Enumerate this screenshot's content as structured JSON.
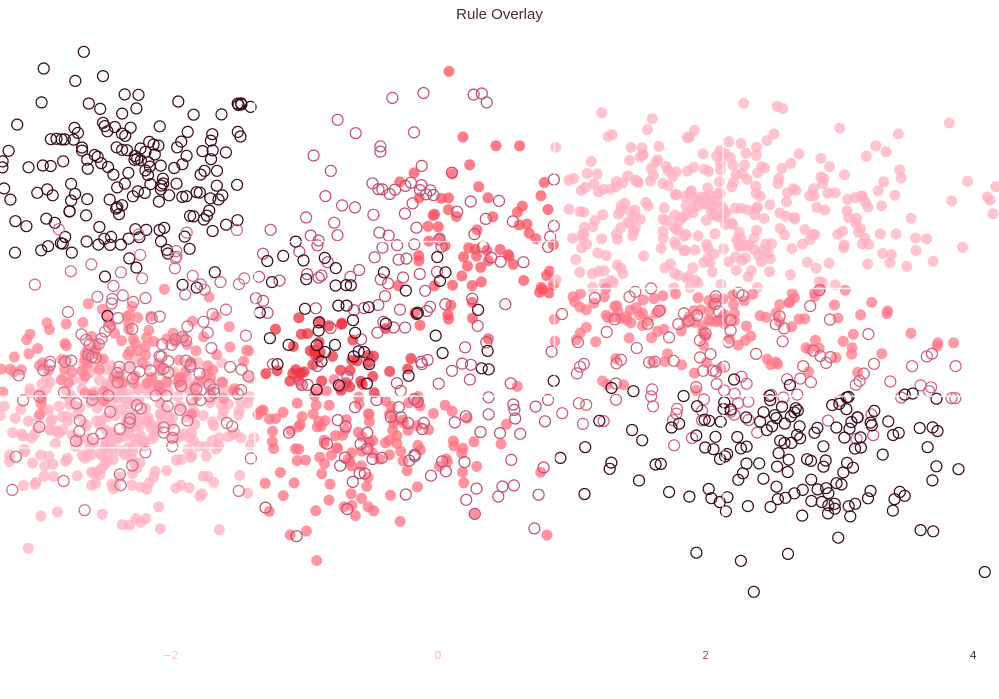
{
  "chart_data": {
    "type": "scatter",
    "title": "Rule Overlay",
    "xlabel": "",
    "ylabel": "",
    "x_ticks": [
      -2,
      0,
      2,
      4
    ],
    "x_tick_colors": [
      "#ffc0d0",
      "#ffb0c0",
      "#a05060",
      "#333333"
    ],
    "xlim": [
      -3.28,
      4.2
    ],
    "ylim": [
      -3.2,
      3.2
    ],
    "grid": false,
    "legend": null,
    "rules": {
      "vertical_x": [
        -1.37,
        0.87,
        2.13
      ],
      "horizontal_y": [
        {
          "y": 0.55,
          "x_from": 0.87,
          "x_to": 4.2
        },
        {
          "y": 1.05,
          "x_from": -1.37,
          "x_to": 0.87
        },
        {
          "y": -0.6,
          "x_from": -3.28,
          "x_to": 0.87
        },
        {
          "y": -1.15,
          "x_from": -3.28,
          "x_to": -1.37
        },
        {
          "y": -0.6,
          "x_from": 2.13,
          "x_to": 4.2
        }
      ]
    },
    "series": [
      {
        "name": "dark-hollow-topleft",
        "style": "hollow",
        "color": "#3a0a18",
        "center": [
          -2.3,
          1.7
        ],
        "spread": [
          0.55,
          0.55
        ],
        "count": 170,
        "xrange": [
          -3.28,
          -1.37
        ],
        "yrange": [
          0.2,
          3.2
        ]
      },
      {
        "name": "pink-hollow-topmid",
        "style": "hollow",
        "color": "#c05070",
        "center": [
          -0.3,
          1.0
        ],
        "spread": [
          0.7,
          0.7
        ],
        "count": 110,
        "xrange": [
          -1.37,
          0.87
        ],
        "yrange": [
          -0.6,
          3.2
        ]
      },
      {
        "name": "red-filled-topmid",
        "style": "filled",
        "color": "#ff5060",
        "center": [
          0.3,
          0.9
        ],
        "spread": [
          0.5,
          0.6
        ],
        "count": 70,
        "xrange": [
          -0.3,
          0.87
        ],
        "yrange": [
          0.0,
          3.2
        ]
      },
      {
        "name": "lightpink-filled-topright",
        "style": "filled",
        "color": "#ffb0c0",
        "center": [
          2.0,
          1.3
        ],
        "spread": [
          0.9,
          0.5
        ],
        "count": 330,
        "xrange": [
          0.87,
          4.2
        ],
        "yrange": [
          0.55,
          3.2
        ]
      },
      {
        "name": "pink-filled-midright",
        "style": "filled",
        "color": "#ff7a8a",
        "center": [
          1.8,
          0.3
        ],
        "spread": [
          0.9,
          0.35
        ],
        "count": 130,
        "xrange": [
          0.87,
          4.2
        ],
        "yrange": [
          -0.6,
          0.55
        ]
      },
      {
        "name": "red-filled-center",
        "style": "filled",
        "color": "#ee3040",
        "center": [
          -0.8,
          -0.3
        ],
        "spread": [
          0.35,
          0.3
        ],
        "count": 45,
        "xrange": [
          -1.37,
          0.0
        ],
        "yrange": [
          -0.6,
          0.3
        ]
      },
      {
        "name": "dark-hollow-mid",
        "style": "hollow",
        "color": "#3a0a18",
        "center": [
          -0.7,
          0.1
        ],
        "spread": [
          0.6,
          0.5
        ],
        "count": 50,
        "xrange": [
          -1.37,
          0.87
        ],
        "yrange": [
          -0.6,
          1.05
        ]
      },
      {
        "name": "lightpink-filled-bottomleft",
        "style": "filled",
        "color": "#ffb0c0",
        "center": [
          -2.3,
          -0.9
        ],
        "spread": [
          0.6,
          0.45
        ],
        "count": 300,
        "xrange": [
          -3.28,
          -1.37
        ],
        "yrange": [
          -3.2,
          -0.2
        ]
      },
      {
        "name": "pink-hollow-left",
        "style": "hollow",
        "color": "#d06a85",
        "center": [
          -2.3,
          -0.3
        ],
        "spread": [
          0.6,
          0.7
        ],
        "count": 130,
        "xrange": [
          -3.28,
          -1.37
        ],
        "yrange": [
          -2.0,
          1.2
        ]
      },
      {
        "name": "pink-filled-left",
        "style": "filled",
        "color": "#ff8090",
        "center": [
          -2.3,
          -0.2
        ],
        "spread": [
          0.6,
          0.35
        ],
        "count": 120,
        "xrange": [
          -3.28,
          -1.37
        ],
        "yrange": [
          -0.8,
          0.6
        ]
      },
      {
        "name": "pink-filled-bottommid",
        "style": "filled",
        "color": "#ff7080",
        "center": [
          -0.6,
          -1.0
        ],
        "spread": [
          0.5,
          0.5
        ],
        "count": 130,
        "xrange": [
          -1.37,
          0.87
        ],
        "yrange": [
          -3.2,
          -0.4
        ]
      },
      {
        "name": "pink-hollow-bottommid",
        "style": "hollow",
        "color": "#c05070",
        "center": [
          0.0,
          -0.9
        ],
        "spread": [
          0.7,
          0.5
        ],
        "count": 70,
        "xrange": [
          -1.37,
          0.87
        ],
        "yrange": [
          -2.4,
          -0.2
        ]
      },
      {
        "name": "pink-hollow-right",
        "style": "hollow",
        "color": "#d0607a",
        "center": [
          2.0,
          -0.3
        ],
        "spread": [
          0.9,
          0.5
        ],
        "count": 110,
        "xrange": [
          0.87,
          4.2
        ],
        "yrange": [
          -1.2,
          0.55
        ]
      },
      {
        "name": "dark-hollow-bottomright",
        "style": "hollow",
        "color": "#3a0a18",
        "center": [
          2.5,
          -1.2
        ],
        "spread": [
          0.7,
          0.5
        ],
        "count": 150,
        "xrange": [
          0.87,
          4.2
        ],
        "yrange": [
          -3.2,
          -0.4
        ]
      }
    ]
  }
}
